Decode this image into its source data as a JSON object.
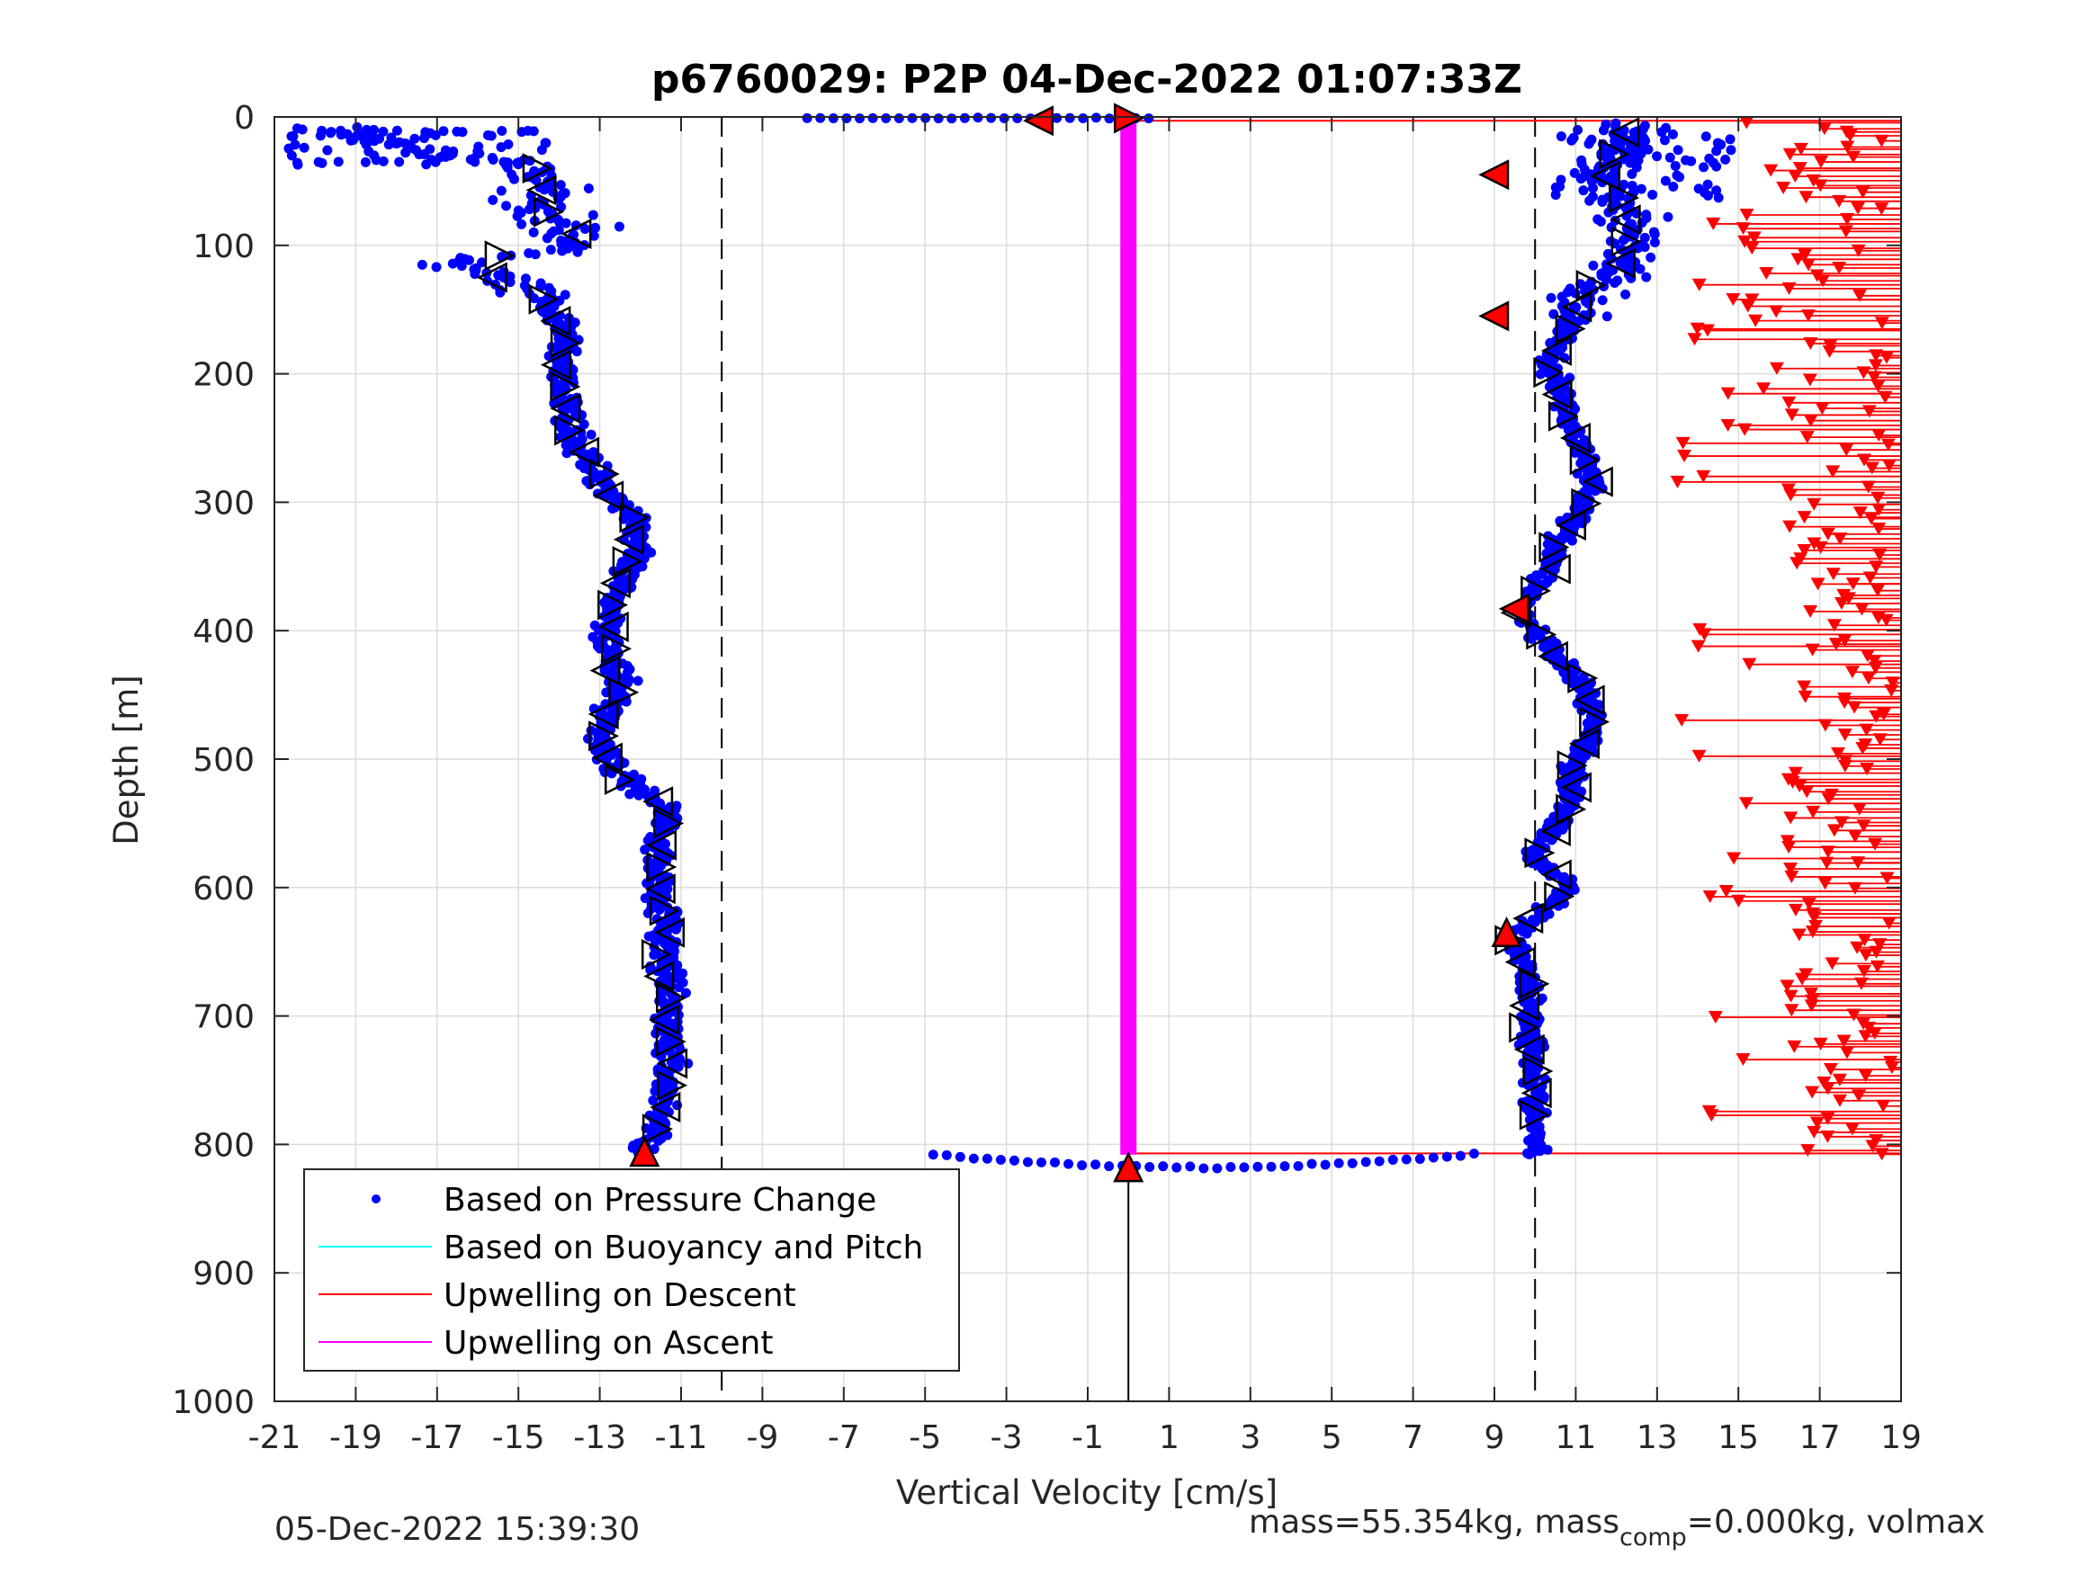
{
  "chart_data": {
    "type": "scatter",
    "title": "p6760029: P2P 04-Dec-2022 01:07:33Z",
    "xlabel": "Vertical Velocity [cm/s]",
    "ylabel": "Depth [m]",
    "xlim": [
      -21,
      19
    ],
    "ylim": [
      0,
      1000
    ],
    "y_reversed": true,
    "grid": true,
    "xticks": [
      -21,
      -19,
      -17,
      -15,
      -13,
      -11,
      -9,
      -7,
      -5,
      -3,
      -1,
      1,
      3,
      5,
      7,
      9,
      11,
      13,
      15,
      17,
      19
    ],
    "yticks": [
      0,
      100,
      200,
      300,
      400,
      500,
      600,
      700,
      800,
      900,
      1000
    ],
    "reference_lines_x": [
      -10,
      10
    ],
    "legend": {
      "placement": "bottom-left",
      "entries": [
        {
          "label": "Based on Pressure Change",
          "color": "#0000ff",
          "style": "dot"
        },
        {
          "label": "Based on Buoyancy and Pitch",
          "color": "#00ffff",
          "style": "line"
        },
        {
          "label": "Upwelling on Descent",
          "color": "#ff0000",
          "style": "line"
        },
        {
          "label": "Upwelling on Ascent",
          "color": "#ff00ff",
          "style": "line"
        }
      ]
    },
    "colors": {
      "pressure": "#0000ff",
      "buoyancy": "#00ffff",
      "upwelling_descent": "#ff0000",
      "upwelling_ascent": "#ff00ff",
      "marker_edge": "#000000",
      "marker_fill_red": "#ff0000"
    },
    "dive_profile": [
      {
        "depth": 0,
        "v": -20.5
      },
      {
        "depth": 20,
        "v": -18.5
      },
      {
        "depth": 40,
        "v": -14.5
      },
      {
        "depth": 60,
        "v": -14.5
      },
      {
        "depth": 80,
        "v": -14.0
      },
      {
        "depth": 100,
        "v": -13.5
      },
      {
        "depth": 115,
        "v": -16.8
      },
      {
        "depth": 125,
        "v": -15.5
      },
      {
        "depth": 140,
        "v": -14.5
      },
      {
        "depth": 170,
        "v": -13.8
      },
      {
        "depth": 200,
        "v": -14.0
      },
      {
        "depth": 230,
        "v": -13.8
      },
      {
        "depth": 260,
        "v": -13.5
      },
      {
        "depth": 290,
        "v": -12.8
      },
      {
        "depth": 315,
        "v": -12.0
      },
      {
        "depth": 340,
        "v": -12.2
      },
      {
        "depth": 370,
        "v": -12.6
      },
      {
        "depth": 410,
        "v": -12.8
      },
      {
        "depth": 445,
        "v": -12.5
      },
      {
        "depth": 480,
        "v": -13.0
      },
      {
        "depth": 510,
        "v": -12.6
      },
      {
        "depth": 540,
        "v": -11.3
      },
      {
        "depth": 580,
        "v": -11.6
      },
      {
        "depth": 620,
        "v": -11.4
      },
      {
        "depth": 660,
        "v": -11.4
      },
      {
        "depth": 700,
        "v": -11.3
      },
      {
        "depth": 740,
        "v": -11.3
      },
      {
        "depth": 780,
        "v": -11.5
      },
      {
        "depth": 808,
        "v": -11.9
      }
    ],
    "climb_profile": [
      {
        "depth": 808,
        "v": 10.0
      },
      {
        "depth": 780,
        "v": 10.0
      },
      {
        "depth": 740,
        "v": 10.0
      },
      {
        "depth": 700,
        "v": 9.9
      },
      {
        "depth": 660,
        "v": 9.8
      },
      {
        "depth": 640,
        "v": 9.4
      },
      {
        "depth": 620,
        "v": 10.1
      },
      {
        "depth": 600,
        "v": 10.9
      },
      {
        "depth": 575,
        "v": 9.9
      },
      {
        "depth": 540,
        "v": 10.8
      },
      {
        "depth": 505,
        "v": 11.0
      },
      {
        "depth": 475,
        "v": 11.5
      },
      {
        "depth": 445,
        "v": 11.2
      },
      {
        "depth": 410,
        "v": 10.2
      },
      {
        "depth": 385,
        "v": 9.6
      },
      {
        "depth": 360,
        "v": 10.2
      },
      {
        "depth": 320,
        "v": 10.8
      },
      {
        "depth": 285,
        "v": 11.5
      },
      {
        "depth": 250,
        "v": 11.0
      },
      {
        "depth": 220,
        "v": 10.7
      },
      {
        "depth": 190,
        "v": 10.3
      },
      {
        "depth": 165,
        "v": 10.8
      },
      {
        "depth": 140,
        "v": 11.1
      },
      {
        "depth": 120,
        "v": 12.0
      },
      {
        "depth": 100,
        "v": 12.2
      },
      {
        "depth": 70,
        "v": 12.4
      },
      {
        "depth": 40,
        "v": 11.6
      },
      {
        "depth": 10,
        "v": 12.3
      }
    ],
    "bottom_transition": {
      "depth_start": 808,
      "depth_end": 820,
      "v_from": -4.8,
      "v_to": 8.5
    },
    "surface_transition": {
      "depth": 1,
      "v_from": -7.9,
      "v_to": 0.5
    },
    "upwelling_ascent_segment": {
      "v": 0.0,
      "depth_from": 0,
      "depth_to": 808
    },
    "upwelling_descent_range": {
      "v_min": 13.5,
      "v_max": 19,
      "depth_from": 5,
      "depth_to": 808
    },
    "upper_surface_line": {
      "depth": 3,
      "v_from": 0.0,
      "v_to": 19
    },
    "lower_bottom_line": {
      "depth": 807,
      "v_from": 0.0,
      "v_to": 19
    },
    "anchor_vertical_line": {
      "v": 0.0,
      "depth_from": 820,
      "depth_to": 1000
    },
    "red_markers": [
      {
        "v": 0.0,
        "depth": 1,
        "dir": "right"
      },
      {
        "v": -2.2,
        "depth": 3,
        "dir": "left"
      },
      {
        "v": 9.0,
        "depth": 45,
        "dir": "left"
      },
      {
        "v": 9.0,
        "depth": 155,
        "dir": "left"
      },
      {
        "v": 9.5,
        "depth": 383,
        "dir": "left"
      },
      {
        "v": 9.3,
        "depth": 635,
        "dir": "up"
      },
      {
        "v": -11.9,
        "depth": 806,
        "dir": "up"
      },
      {
        "v": 0.0,
        "depth": 818,
        "dir": "up"
      }
    ]
  },
  "footer": {
    "date": "05-Dec-2022 15:39:30",
    "mass_prefix": "mass=55.354kg, mass",
    "mass_subscript": "comp",
    "mass_suffix": "=0.000kg, volmax"
  }
}
